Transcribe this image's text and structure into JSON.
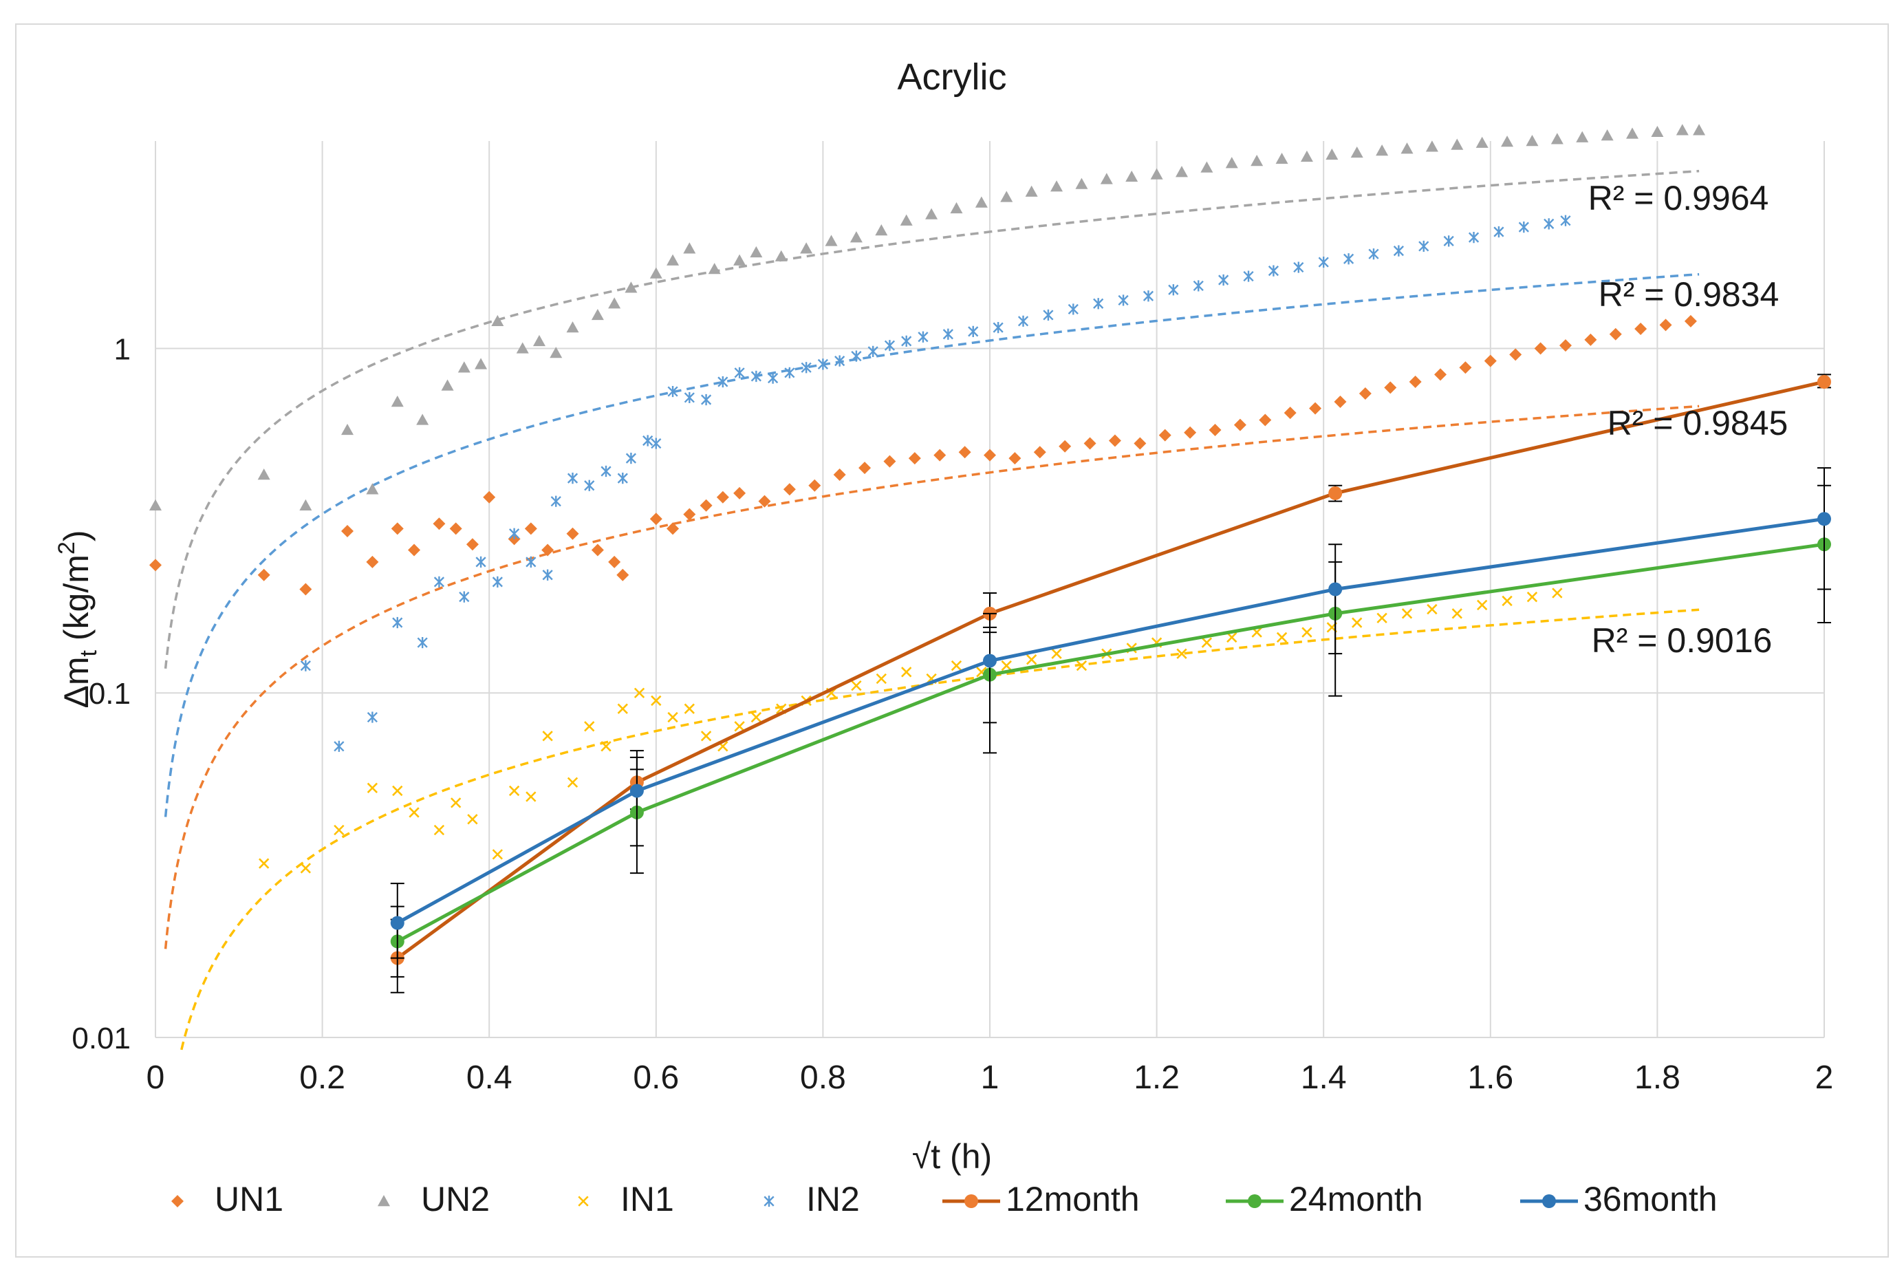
{
  "chart_data": {
    "type": "scatter",
    "title": "Acrylic",
    "ylabel_main": "Δm",
    "ylabel_sub": "t",
    "ylabel_rest": " (kg/m",
    "ylabel_sup": "2",
    "ylabel_close": ")",
    "xlabel": "√t (h)",
    "xlim": [
      0,
      2
    ],
    "ylim": [
      0.01,
      4
    ],
    "yscale": "log",
    "x_ticks": [
      "0",
      "0.2",
      "0.4",
      "0.6",
      "0.8",
      "1",
      "1.2",
      "1.4",
      "1.6",
      "1.8",
      "2"
    ],
    "y_ticks": [
      {
        "value": 0.01,
        "label": "0.01"
      },
      {
        "value": 0.1,
        "label": "0.1"
      },
      {
        "value": 1,
        "label": "1"
      }
    ],
    "grid": true,
    "legend_position": "bottom",
    "series": [
      {
        "name": "UN1",
        "kind": "scatter",
        "marker": "diamond",
        "color": "#ed7d31",
        "fit": {
          "x0": 0.5,
          "y0": 0.265,
          "slope": 0.72,
          "x_end": 1.85
        },
        "r2_label": "R² = 0.9845",
        "points": [
          [
            0.0,
            0.235
          ],
          [
            0.13,
            0.22
          ],
          [
            0.18,
            0.2
          ],
          [
            0.23,
            0.295
          ],
          [
            0.26,
            0.24
          ],
          [
            0.29,
            0.3
          ],
          [
            0.31,
            0.26
          ],
          [
            0.34,
            0.31
          ],
          [
            0.36,
            0.3
          ],
          [
            0.38,
            0.27
          ],
          [
            0.4,
            0.37
          ],
          [
            0.43,
            0.28
          ],
          [
            0.45,
            0.3
          ],
          [
            0.47,
            0.26
          ],
          [
            0.5,
            0.29
          ],
          [
            0.53,
            0.26
          ],
          [
            0.55,
            0.24
          ],
          [
            0.56,
            0.22
          ],
          [
            0.6,
            0.32
          ],
          [
            0.62,
            0.3
          ],
          [
            0.64,
            0.33
          ],
          [
            0.66,
            0.35
          ],
          [
            0.68,
            0.37
          ],
          [
            0.7,
            0.38
          ],
          [
            0.73,
            0.36
          ],
          [
            0.76,
            0.39
          ],
          [
            0.79,
            0.4
          ],
          [
            0.82,
            0.43
          ],
          [
            0.85,
            0.45
          ],
          [
            0.88,
            0.47
          ],
          [
            0.91,
            0.48
          ],
          [
            0.94,
            0.49
          ],
          [
            0.97,
            0.5
          ],
          [
            1.0,
            0.49
          ],
          [
            1.03,
            0.48
          ],
          [
            1.06,
            0.5
          ],
          [
            1.09,
            0.52
          ],
          [
            1.12,
            0.53
          ],
          [
            1.15,
            0.54
          ],
          [
            1.18,
            0.53
          ],
          [
            1.21,
            0.56
          ],
          [
            1.24,
            0.57
          ],
          [
            1.27,
            0.58
          ],
          [
            1.3,
            0.6
          ],
          [
            1.33,
            0.62
          ],
          [
            1.36,
            0.65
          ],
          [
            1.39,
            0.67
          ],
          [
            1.42,
            0.7
          ],
          [
            1.45,
            0.74
          ],
          [
            1.48,
            0.77
          ],
          [
            1.51,
            0.8
          ],
          [
            1.54,
            0.84
          ],
          [
            1.57,
            0.88
          ],
          [
            1.6,
            0.92
          ],
          [
            1.63,
            0.96
          ],
          [
            1.66,
            1.0
          ],
          [
            1.69,
            1.02
          ],
          [
            1.72,
            1.06
          ],
          [
            1.75,
            1.1
          ],
          [
            1.78,
            1.14
          ],
          [
            1.81,
            1.17
          ],
          [
            1.84,
            1.2
          ]
        ]
      },
      {
        "name": "UN2",
        "kind": "scatter",
        "marker": "triangle",
        "color": "#a5a5a5",
        "fit": {
          "x0": 0.5,
          "y0": 1.38,
          "slope": 0.66,
          "x_end": 1.85
        },
        "r2_label": "R² = 0.9964",
        "points": [
          [
            0.0,
            0.35
          ],
          [
            0.13,
            0.43
          ],
          [
            0.18,
            0.35
          ],
          [
            0.23,
            0.58
          ],
          [
            0.26,
            0.39
          ],
          [
            0.29,
            0.7
          ],
          [
            0.32,
            0.62
          ],
          [
            0.35,
            0.78
          ],
          [
            0.37,
            0.88
          ],
          [
            0.39,
            0.9
          ],
          [
            0.41,
            1.2
          ],
          [
            0.44,
            1.0
          ],
          [
            0.46,
            1.05
          ],
          [
            0.48,
            0.97
          ],
          [
            0.5,
            1.15
          ],
          [
            0.53,
            1.25
          ],
          [
            0.55,
            1.35
          ],
          [
            0.57,
            1.5
          ],
          [
            0.6,
            1.65
          ],
          [
            0.62,
            1.8
          ],
          [
            0.64,
            1.95
          ],
          [
            0.67,
            1.7
          ],
          [
            0.7,
            1.8
          ],
          [
            0.72,
            1.9
          ],
          [
            0.75,
            1.85
          ],
          [
            0.78,
            1.95
          ],
          [
            0.81,
            2.05
          ],
          [
            0.84,
            2.1
          ],
          [
            0.87,
            2.2
          ],
          [
            0.9,
            2.35
          ],
          [
            0.93,
            2.45
          ],
          [
            0.96,
            2.55
          ],
          [
            0.99,
            2.65
          ],
          [
            1.02,
            2.75
          ],
          [
            1.05,
            2.85
          ],
          [
            1.08,
            2.95
          ],
          [
            1.11,
            3.0
          ],
          [
            1.14,
            3.1
          ],
          [
            1.17,
            3.15
          ],
          [
            1.2,
            3.2
          ],
          [
            1.23,
            3.25
          ],
          [
            1.26,
            3.35
          ],
          [
            1.29,
            3.45
          ],
          [
            1.32,
            3.5
          ],
          [
            1.35,
            3.55
          ],
          [
            1.38,
            3.6
          ],
          [
            1.41,
            3.65
          ],
          [
            1.44,
            3.7
          ],
          [
            1.47,
            3.75
          ],
          [
            1.5,
            3.8
          ],
          [
            1.53,
            3.85
          ],
          [
            1.56,
            3.9
          ],
          [
            1.59,
            3.95
          ],
          [
            1.62,
            3.98
          ],
          [
            1.65,
            4.0
          ],
          [
            1.68,
            4.05
          ],
          [
            1.71,
            4.1
          ],
          [
            1.74,
            4.15
          ],
          [
            1.77,
            4.2
          ],
          [
            1.8,
            4.25
          ],
          [
            1.83,
            4.3
          ],
          [
            1.85,
            4.3
          ]
        ]
      },
      {
        "name": "IN1",
        "kind": "scatter",
        "marker": "x",
        "color": "#ffc000",
        "fit": {
          "x0": 0.5,
          "y0": 0.068,
          "slope": 0.72,
          "x_end": 1.85
        },
        "r2_label": "R² = 0.9016",
        "points": [
          [
            0.13,
            0.032
          ],
          [
            0.18,
            0.031
          ],
          [
            0.22,
            0.04
          ],
          [
            0.26,
            0.053
          ],
          [
            0.29,
            0.052
          ],
          [
            0.31,
            0.045
          ],
          [
            0.34,
            0.04
          ],
          [
            0.36,
            0.048
          ],
          [
            0.38,
            0.043
          ],
          [
            0.41,
            0.034
          ],
          [
            0.43,
            0.052
          ],
          [
            0.45,
            0.05
          ],
          [
            0.47,
            0.075
          ],
          [
            0.5,
            0.055
          ],
          [
            0.52,
            0.08
          ],
          [
            0.54,
            0.07
          ],
          [
            0.56,
            0.09
          ],
          [
            0.58,
            0.1
          ],
          [
            0.6,
            0.095
          ],
          [
            0.62,
            0.085
          ],
          [
            0.64,
            0.09
          ],
          [
            0.66,
            0.075
          ],
          [
            0.68,
            0.07
          ],
          [
            0.7,
            0.08
          ],
          [
            0.72,
            0.085
          ],
          [
            0.75,
            0.09
          ],
          [
            0.78,
            0.095
          ],
          [
            0.81,
            0.1
          ],
          [
            0.84,
            0.105
          ],
          [
            0.87,
            0.11
          ],
          [
            0.9,
            0.115
          ],
          [
            0.93,
            0.11
          ],
          [
            0.96,
            0.12
          ],
          [
            0.99,
            0.115
          ],
          [
            1.02,
            0.12
          ],
          [
            1.05,
            0.125
          ],
          [
            1.08,
            0.13
          ],
          [
            1.11,
            0.12
          ],
          [
            1.14,
            0.13
          ],
          [
            1.17,
            0.135
          ],
          [
            1.2,
            0.14
          ],
          [
            1.23,
            0.13
          ],
          [
            1.26,
            0.14
          ],
          [
            1.29,
            0.145
          ],
          [
            1.32,
            0.15
          ],
          [
            1.35,
            0.145
          ],
          [
            1.38,
            0.15
          ],
          [
            1.41,
            0.155
          ],
          [
            1.44,
            0.16
          ],
          [
            1.47,
            0.165
          ],
          [
            1.5,
            0.17
          ],
          [
            1.53,
            0.175
          ],
          [
            1.56,
            0.17
          ],
          [
            1.59,
            0.18
          ],
          [
            1.62,
            0.185
          ],
          [
            1.65,
            0.19
          ],
          [
            1.68,
            0.195
          ]
        ]
      },
      {
        "name": "IN2",
        "kind": "scatter",
        "marker": "star",
        "color": "#5b9bd5",
        "fit": {
          "x0": 0.5,
          "y0": 0.64,
          "slope": 0.72,
          "x_end": 1.85
        },
        "r2_label": "R² = 0.9834",
        "points": [
          [
            0.18,
            0.12
          ],
          [
            0.22,
            0.07
          ],
          [
            0.26,
            0.085
          ],
          [
            0.29,
            0.16
          ],
          [
            0.32,
            0.14
          ],
          [
            0.34,
            0.21
          ],
          [
            0.37,
            0.19
          ],
          [
            0.39,
            0.24
          ],
          [
            0.41,
            0.21
          ],
          [
            0.43,
            0.29
          ],
          [
            0.45,
            0.24
          ],
          [
            0.47,
            0.22
          ],
          [
            0.48,
            0.36
          ],
          [
            0.5,
            0.42
          ],
          [
            0.52,
            0.4
          ],
          [
            0.54,
            0.44
          ],
          [
            0.56,
            0.42
          ],
          [
            0.57,
            0.48
          ],
          [
            0.59,
            0.54
          ],
          [
            0.6,
            0.53
          ],
          [
            0.62,
            0.75
          ],
          [
            0.64,
            0.72
          ],
          [
            0.66,
            0.71
          ],
          [
            0.68,
            0.8
          ],
          [
            0.7,
            0.85
          ],
          [
            0.72,
            0.83
          ],
          [
            0.74,
            0.82
          ],
          [
            0.76,
            0.85
          ],
          [
            0.78,
            0.88
          ],
          [
            0.8,
            0.9
          ],
          [
            0.82,
            0.92
          ],
          [
            0.84,
            0.95
          ],
          [
            0.86,
            0.98
          ],
          [
            0.88,
            1.02
          ],
          [
            0.9,
            1.05
          ],
          [
            0.92,
            1.08
          ],
          [
            0.95,
            1.1
          ],
          [
            0.98,
            1.12
          ],
          [
            1.01,
            1.15
          ],
          [
            1.04,
            1.2
          ],
          [
            1.07,
            1.25
          ],
          [
            1.1,
            1.3
          ],
          [
            1.13,
            1.35
          ],
          [
            1.16,
            1.38
          ],
          [
            1.19,
            1.42
          ],
          [
            1.22,
            1.48
          ],
          [
            1.25,
            1.52
          ],
          [
            1.28,
            1.58
          ],
          [
            1.31,
            1.62
          ],
          [
            1.34,
            1.68
          ],
          [
            1.37,
            1.72
          ],
          [
            1.4,
            1.78
          ],
          [
            1.43,
            1.82
          ],
          [
            1.46,
            1.88
          ],
          [
            1.49,
            1.92
          ],
          [
            1.52,
            1.98
          ],
          [
            1.55,
            2.05
          ],
          [
            1.58,
            2.1
          ],
          [
            1.61,
            2.18
          ],
          [
            1.64,
            2.25
          ],
          [
            1.67,
            2.3
          ],
          [
            1.69,
            2.35
          ]
        ]
      },
      {
        "name": "12month",
        "kind": "line",
        "color": "#c55a11",
        "line_color": "#c55a11",
        "marker_color": "#ed7d31",
        "points": [
          [
            0.29,
            0.017
          ],
          [
            0.577,
            0.055
          ],
          [
            1.0,
            0.17
          ],
          [
            1.414,
            0.38
          ],
          [
            2.0,
            0.8
          ]
        ],
        "err": [
          [
            0.29,
            0.0135,
            0.022
          ],
          [
            0.577,
            0.046,
            0.065
          ],
          [
            1.0,
            0.15,
            0.195
          ],
          [
            1.414,
            0.36,
            0.4
          ],
          [
            2.0,
            0.77,
            0.84
          ]
        ]
      },
      {
        "name": "24month",
        "kind": "line",
        "color": "#4caf3a",
        "line_color": "#4caf3a",
        "marker_color": "#4caf3a",
        "points": [
          [
            0.29,
            0.019
          ],
          [
            0.577,
            0.045
          ],
          [
            1.0,
            0.113
          ],
          [
            1.414,
            0.17
          ],
          [
            2.0,
            0.27
          ]
        ],
        "err": [
          [
            0.29,
            0.015,
            0.024
          ],
          [
            0.577,
            0.03,
            0.06
          ],
          [
            1.0,
            0.067,
            0.155
          ],
          [
            1.414,
            0.098,
            0.24
          ],
          [
            2.0,
            0.16,
            0.4
          ]
        ]
      },
      {
        "name": "36month",
        "kind": "line",
        "color": "#2e75b6",
        "line_color": "#2e75b6",
        "marker_color": "#2e75b6",
        "points": [
          [
            0.29,
            0.0215
          ],
          [
            0.577,
            0.052
          ],
          [
            1.0,
            0.124
          ],
          [
            1.414,
            0.2
          ],
          [
            2.0,
            0.32
          ]
        ],
        "err": [
          [
            0.29,
            0.017,
            0.028
          ],
          [
            0.577,
            0.036,
            0.068
          ],
          [
            1.0,
            0.082,
            0.17
          ],
          [
            1.414,
            0.13,
            0.27
          ],
          [
            2.0,
            0.2,
            0.45
          ]
        ]
      }
    ]
  }
}
